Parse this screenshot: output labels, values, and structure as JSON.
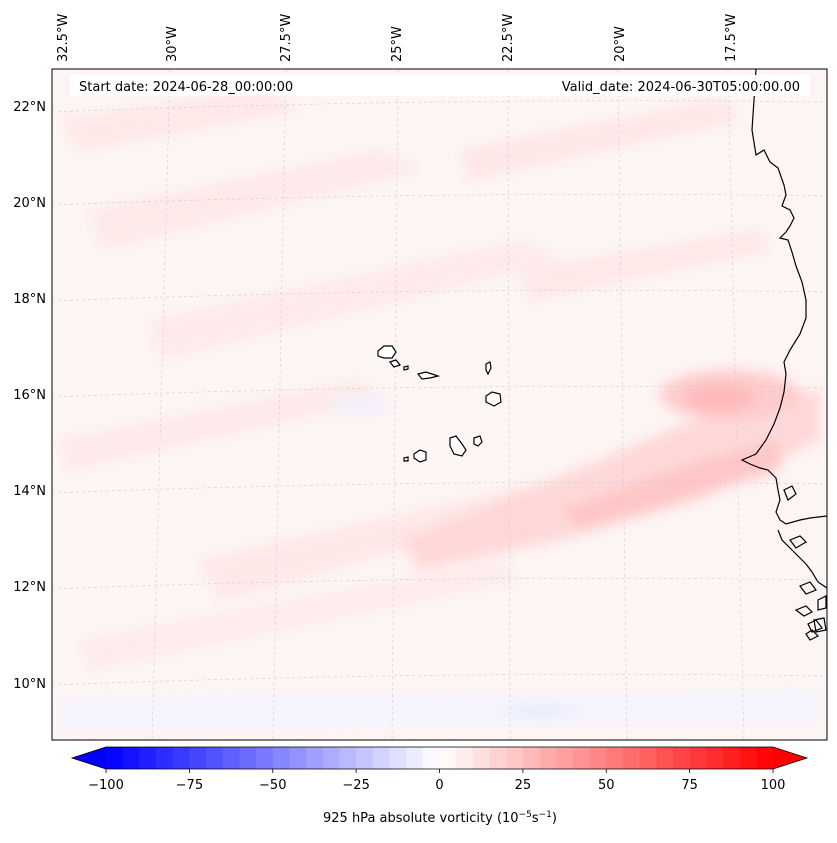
{
  "map": {
    "start_date": "Start date: 2024-06-28_00:00:00",
    "valid_date": "Valid_date: 2024-06-30T05:00:00.00",
    "longitude_labels": [
      "32.5°W",
      "30°W",
      "27.5°W",
      "25°W",
      "22.5°W",
      "20°W",
      "17.5°W"
    ],
    "latitude_labels": [
      "22°N",
      "20°N",
      "18°N",
      "16°N",
      "14°N",
      "12°N",
      "10°N"
    ],
    "features": [
      "Cape Verde islands",
      "West African coastline"
    ]
  },
  "colorbar": {
    "title": "925 hPa absolute vorticity (10",
    "unit_exp1": "−5",
    "unit_mid": "s",
    "unit_exp2": "−1",
    "unit_close": ")",
    "tick_labels": [
      "−100",
      "−75",
      "−50",
      "−25",
      "0",
      "25",
      "50",
      "75",
      "100"
    ],
    "min": -100,
    "max": 100,
    "extend": "both",
    "colormap": "bwr",
    "colors": {
      "low": "#0000ff",
      "mid": "#ffffff",
      "high": "#ff0000"
    }
  }
}
